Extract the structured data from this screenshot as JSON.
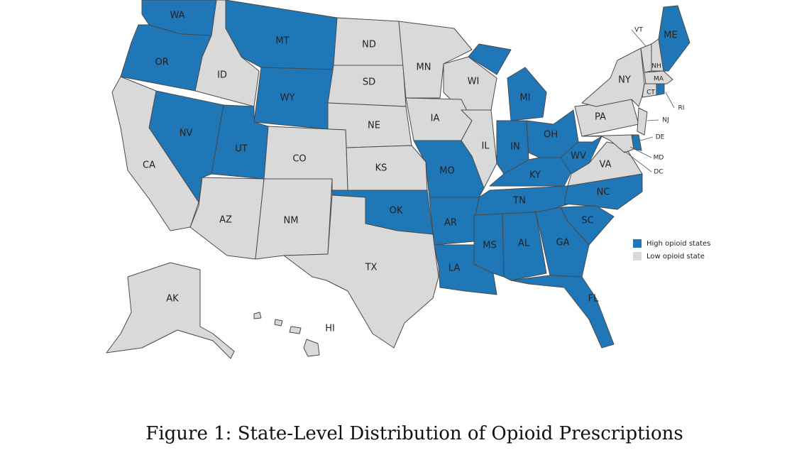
{
  "map": {
    "legend": [
      {
        "label": "High opioid states",
        "color": "#1f77b8"
      },
      {
        "label": "Low opioid state",
        "color": "#d9d9d9"
      }
    ],
    "groups": [
      [
        "WA",
        "OR",
        "MT",
        "WY",
        "NV",
        "UT",
        "OK",
        "MO",
        "AR",
        "LA",
        "MS",
        "AL",
        "TN",
        "KY",
        "IN",
        "OH",
        "MI",
        "WV",
        "NC",
        "SC",
        "GA",
        "FL",
        "ME",
        "RI",
        "DE"
      ],
      [
        "CA",
        "ID",
        "ND",
        "SD",
        "NE",
        "KS",
        "CO",
        "AZ",
        "NM",
        "TX",
        "MN",
        "WI",
        "IA",
        "IL",
        "VA",
        "PA",
        "NY",
        "NJ",
        "MD",
        "VT",
        "NH",
        "MA",
        "CT",
        "AK",
        "HI",
        "DC"
      ]
    ]
  },
  "caption": "Figure 1: State-Level Distribution of Opioid Prescriptions"
}
